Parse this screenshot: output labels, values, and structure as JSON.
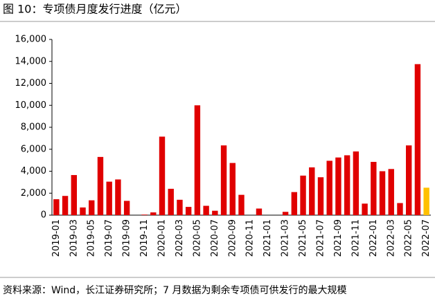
{
  "chart_data": {
    "type": "bar",
    "title": "图 10：专项债月度发行进度（亿元）",
    "source": "资料来源：Wind，长江证券研究所；7 月数据为剩余专项债可供发行的最大规模",
    "categories": [
      "2019-01",
      null,
      "2019-03",
      null,
      "2019-05",
      null,
      "2019-07",
      null,
      "2019-09",
      null,
      "2019-11",
      null,
      "2020-01",
      null,
      "2020-03",
      null,
      "2020-05",
      null,
      "2020-07",
      null,
      "2020-09",
      null,
      "2020-11",
      null,
      "2021-01",
      null,
      "2021-03",
      null,
      "2021-05",
      null,
      "2021-07",
      null,
      "2021-09",
      null,
      "2021-11",
      null,
      "2022-01",
      null,
      "2022-03",
      null,
      "2022-05",
      null,
      "2022-07"
    ],
    "values": [
      1450,
      1750,
      3650,
      700,
      1350,
      5300,
      3050,
      3250,
      1300,
      0,
      50,
      250,
      7150,
      2400,
      1400,
      750,
      10000,
      850,
      400,
      6350,
      4750,
      1850,
      0,
      600,
      0,
      0,
      300,
      2100,
      3600,
      4350,
      3450,
      4950,
      5250,
      5450,
      5800,
      1050,
      4850,
      4000,
      4200,
      1100,
      6350,
      13750,
      2500
    ],
    "colors": [
      "#e00000",
      "#e00000",
      "#e00000",
      "#e00000",
      "#e00000",
      "#e00000",
      "#e00000",
      "#e00000",
      "#e00000",
      "#e00000",
      "#e00000",
      "#e00000",
      "#e00000",
      "#e00000",
      "#e00000",
      "#e00000",
      "#e00000",
      "#e00000",
      "#e00000",
      "#e00000",
      "#e00000",
      "#e00000",
      "#e00000",
      "#e00000",
      "#e00000",
      "#e00000",
      "#e00000",
      "#e00000",
      "#e00000",
      "#e00000",
      "#e00000",
      "#e00000",
      "#e00000",
      "#e00000",
      "#e00000",
      "#e00000",
      "#e00000",
      "#e00000",
      "#e00000",
      "#e00000",
      "#e00000",
      "#e00000",
      "#ffc000"
    ],
    "ylim": [
      0,
      16000
    ],
    "yticks": [
      0,
      {
        "value": 2000,
        "label": "2,000"
      },
      {
        "value": 4000,
        "label": "4,000"
      },
      {
        "value": 6000,
        "label": "6,000"
      },
      {
        "value": 8000,
        "label": "8,000"
      },
      {
        "value": 10000,
        "label": "10,000"
      },
      {
        "value": 12000,
        "label": "12,000"
      },
      {
        "value": 14000,
        "label": "14,000"
      },
      {
        "value": 16000,
        "label": "16,000"
      }
    ],
    "grid": false
  }
}
